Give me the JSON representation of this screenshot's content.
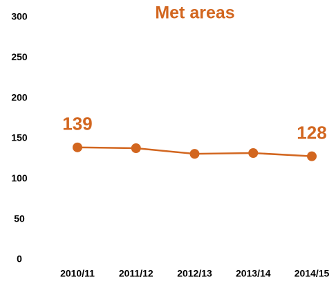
{
  "chart_data": {
    "type": "line",
    "title": "Met areas",
    "categories": [
      "2010/11",
      "2011/12",
      "2012/13",
      "2013/14",
      "2014/15"
    ],
    "series": [
      {
        "name": "Met areas",
        "color": "#d2661f",
        "values": [
          139,
          138,
          131,
          132,
          128
        ],
        "value_labels": [
          "139",
          null,
          null,
          null,
          "128"
        ]
      }
    ],
    "ylim": [
      0,
      300
    ],
    "yticks": [
      0,
      50,
      100,
      150,
      200,
      250,
      300
    ],
    "grid": false
  }
}
